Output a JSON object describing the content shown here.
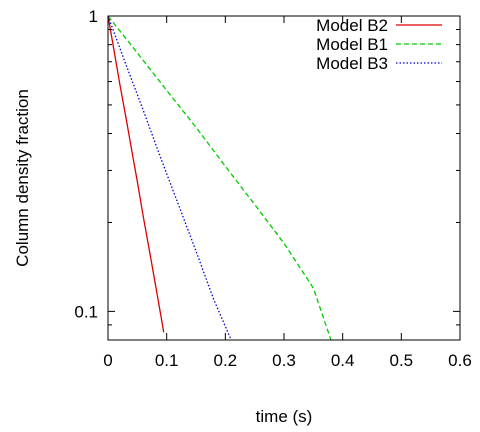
{
  "chart_data": {
    "type": "line",
    "xlabel": "time (s)",
    "ylabel": "Column density fraction",
    "xlim": [
      0,
      0.6
    ],
    "ylim": [
      0.08,
      1
    ],
    "y_scale": "log",
    "x_ticks": [
      0,
      0.1,
      0.2,
      0.3,
      0.4,
      0.5,
      0.6
    ],
    "x_tick_labels": [
      "0",
      "0.1",
      "0.2",
      "0.3",
      "0.4",
      "0.5",
      "0.6"
    ],
    "y_ticks": [
      0.1,
      1
    ],
    "y_tick_labels": [
      "0.1",
      "1"
    ],
    "legend_position": "top-right",
    "series": [
      {
        "name": "Model B2",
        "color": "#dd0000",
        "dash": "solid",
        "x": [
          0,
          0.01,
          0.02,
          0.03,
          0.04,
          0.05,
          0.06,
          0.07,
          0.08,
          0.09,
          0.095
        ],
        "y": [
          1,
          0.77,
          0.59,
          0.46,
          0.355,
          0.275,
          0.21,
          0.163,
          0.126,
          0.097,
          0.085
        ]
      },
      {
        "name": "Model B1",
        "color": "#00cc00",
        "dash": "dashed",
        "x": [
          0,
          0.05,
          0.1,
          0.15,
          0.2,
          0.25,
          0.3,
          0.35,
          0.38
        ],
        "y": [
          1,
          0.75,
          0.56,
          0.42,
          0.31,
          0.23,
          0.17,
          0.12,
          0.08
        ]
      },
      {
        "name": "Model B3",
        "color": "#0000dd",
        "dash": "dotted",
        "x": [
          0,
          0.03,
          0.06,
          0.09,
          0.12,
          0.15,
          0.18,
          0.21
        ],
        "y": [
          1,
          0.69,
          0.48,
          0.33,
          0.23,
          0.16,
          0.11,
          0.08
        ]
      }
    ]
  }
}
